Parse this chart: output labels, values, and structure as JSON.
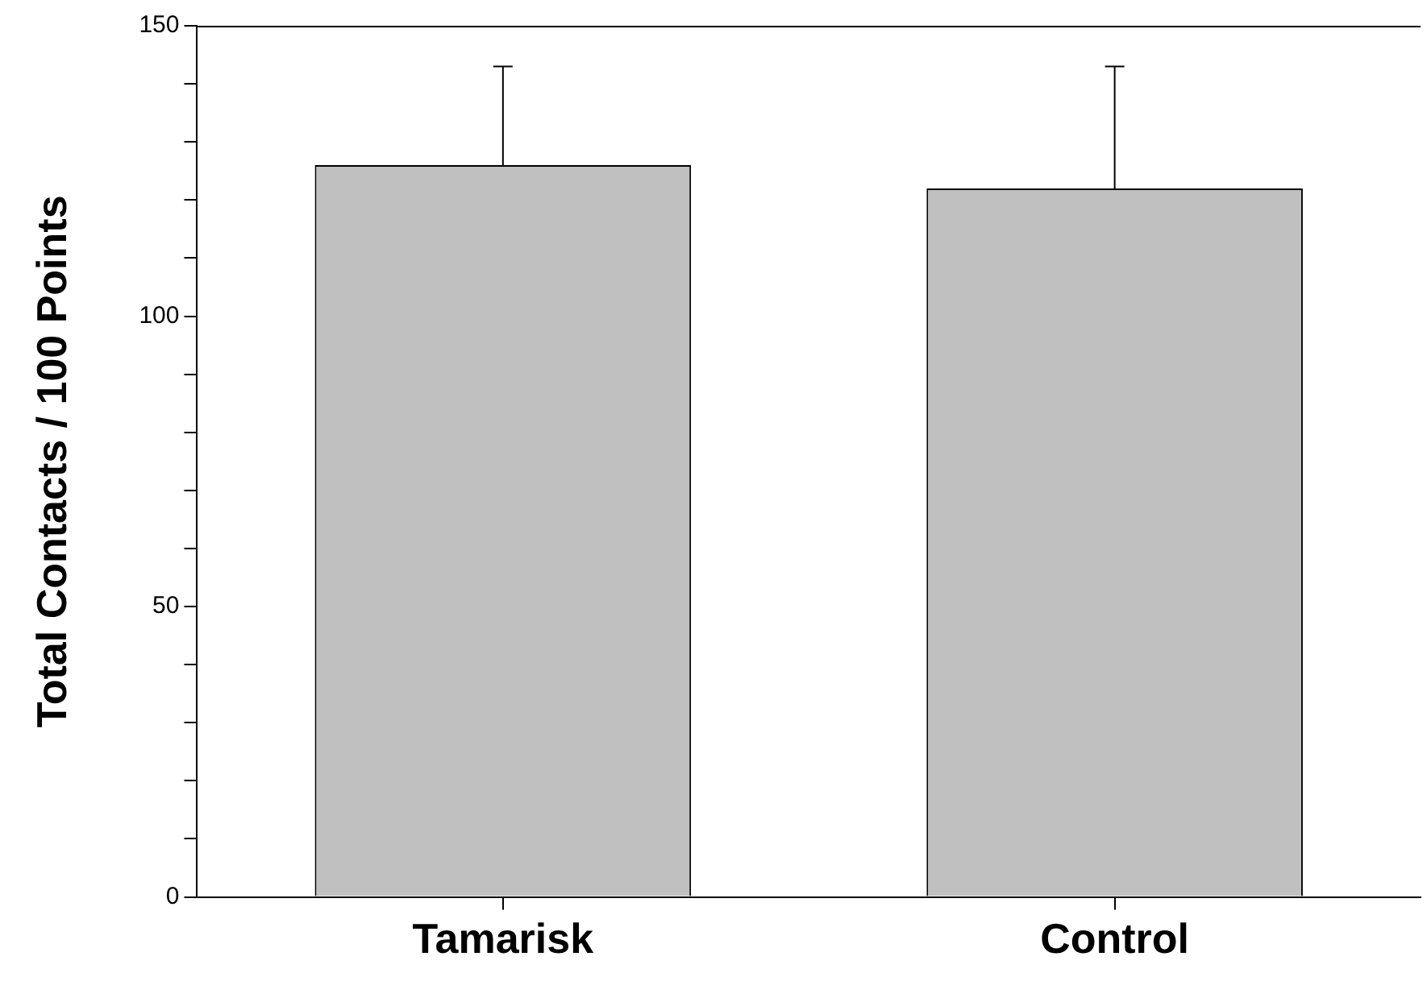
{
  "chart_data": {
    "type": "bar",
    "ylabel": "Total Contacts / 100 Points",
    "categories": [
      "Tamarisk",
      "Control"
    ],
    "values": [
      126,
      122
    ],
    "errors": [
      [
        126,
        143
      ],
      [
        122,
        143
      ]
    ],
    "color": "#c0c0c0",
    "ylim": [
      0,
      150
    ],
    "yticks": [
      0,
      {
        "value": 10,
        "label": null
      },
      {
        "value": 20,
        "label": null
      },
      {
        "value": 30,
        "label": null
      },
      {
        "value": 40,
        "label": null
      },
      50,
      {
        "value": 60,
        "label": null
      },
      {
        "value": 70,
        "label": null
      },
      {
        "value": 80,
        "label": null
      },
      {
        "value": 90,
        "label": null
      },
      100,
      {
        "value": 110,
        "label": null
      },
      {
        "value": 120,
        "label": null
      },
      {
        "value": 130,
        "label": null
      },
      {
        "value": 140,
        "label": null
      },
      150
    ]
  }
}
